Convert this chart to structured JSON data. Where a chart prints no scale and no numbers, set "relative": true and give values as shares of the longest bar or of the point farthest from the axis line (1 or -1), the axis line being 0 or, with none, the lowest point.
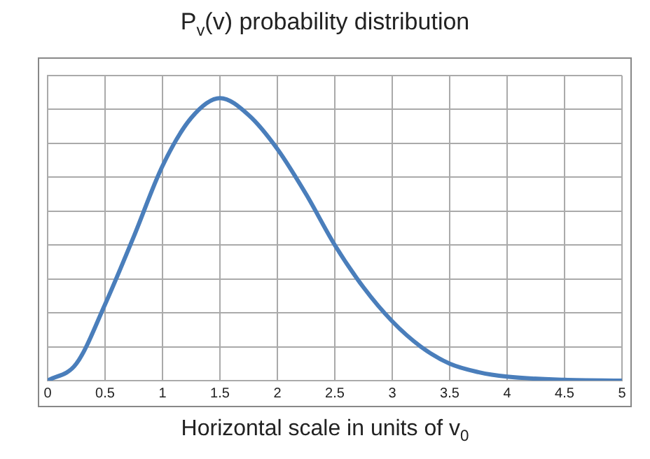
{
  "chart_data": {
    "type": "line",
    "title": "P$_{v}$(v) probability distribution",
    "xlabel": "Horizontal scale in units of v$_{0}$",
    "relative": true,
    "x": [
      0,
      0.25,
      0.5,
      0.75,
      1,
      1.25,
      1.5,
      1.75,
      2,
      2.25,
      2.5,
      2.75,
      3,
      3.25,
      3.5,
      3.75,
      4,
      4.5,
      5
    ],
    "series": [
      {
        "color": "#4a7ebb",
        "values": [
          0,
          0.06,
          0.27,
          0.51,
          0.76,
          0.93,
          1,
          0.94,
          0.82,
          0.66,
          0.48,
          0.33,
          0.21,
          0.12,
          0.06,
          0.03,
          0.014,
          0.003,
          0
        ]
      }
    ],
    "xlim": [
      0,
      5
    ],
    "xticks": [
      0,
      0.5,
      1,
      1.5,
      2,
      2.5,
      3,
      3.5,
      4,
      4.5,
      5
    ],
    "grid": true,
    "legend": false,
    "tick_labels": "x",
    "marker": "none",
    "line_style": "solid"
  }
}
